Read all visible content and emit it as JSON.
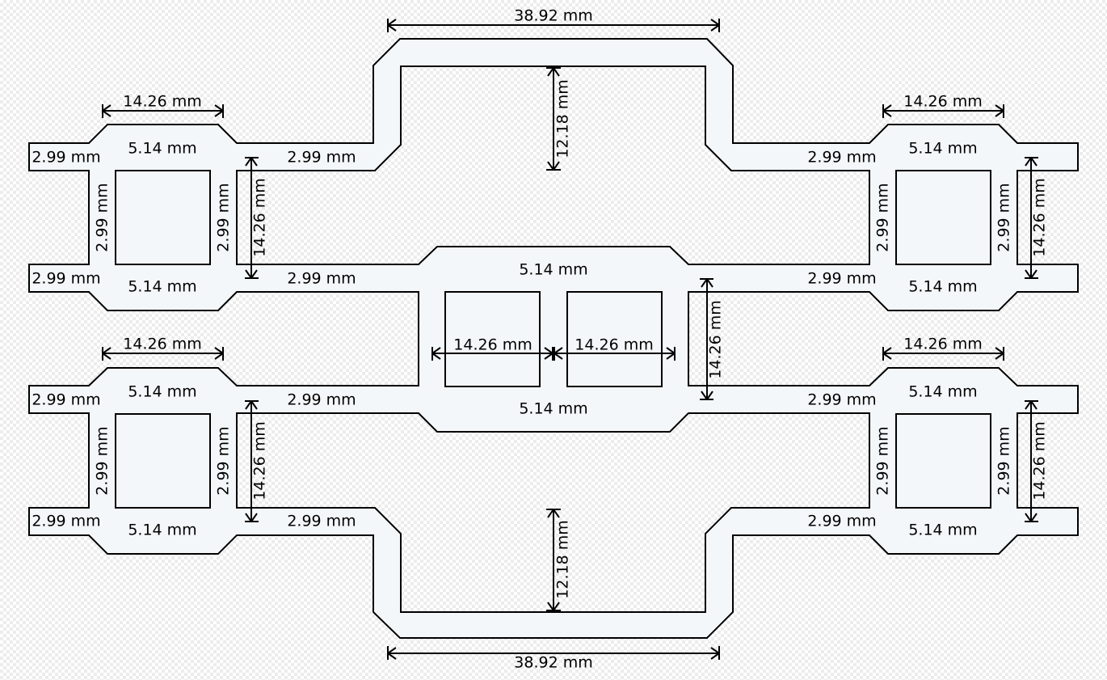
{
  "colors": {
    "plate": "#f4f7f9",
    "line": "#000000"
  },
  "labels": {
    "outer_width_top": "38.92 mm",
    "outer_width_bottom": "38.92 mm",
    "arch_height_top": "12.18 mm",
    "arch_height_bottom": "12.18 mm",
    "mod_width_tl": "14.26 mm",
    "mod_width_tr": "14.26 mm",
    "mod_width_bl": "14.26 mm",
    "mod_width_br": "14.26 mm",
    "mod_height_tl": "14.26 mm",
    "mod_height_tr": "14.26 mm",
    "mod_height_bl": "14.26 mm",
    "mod_height_br": "14.26 mm",
    "center_top_edge": "5.14 mm",
    "center_bottom_edge": "5.14 mm",
    "center_sq_left": "14.26 mm",
    "center_sq_right": "14.26 mm",
    "center_height": "14.26 mm",
    "tl_top_edge": "5.14 mm",
    "tl_bottom_edge": "5.14 mm",
    "tl_left_side": "2.99 mm",
    "tl_right_side": "2.99 mm",
    "tr_top_edge": "5.14 mm",
    "tr_bottom_edge": "5.14 mm",
    "tr_left_side": "2.99 mm",
    "tr_right_side": "2.99 mm",
    "bl_top_edge": "5.14 mm",
    "bl_bottom_edge": "5.14 mm",
    "bl_left_side": "2.99 mm",
    "bl_right_side": "2.99 mm",
    "br_top_edge": "5.14 mm",
    "br_bottom_edge": "5.14 mm",
    "br_left_side": "2.99 mm",
    "br_right_side": "2.99 mm",
    "stub_tl_upper": "2.99 mm",
    "stub_tl_lower": "2.99 mm",
    "stub_bl_upper": "2.99 mm",
    "stub_bl_lower": "2.99 mm",
    "arm_tl_upper": "2.99 mm",
    "arm_tl_lower": "2.99 mm",
    "arm_tr_upper": "2.99 mm",
    "arm_tr_lower": "2.99 mm",
    "arm_bl_upper": "2.99 mm",
    "arm_bl_lower": "2.99 mm",
    "arm_br_upper": "2.99 mm",
    "arm_br_lower": "2.99 mm"
  }
}
